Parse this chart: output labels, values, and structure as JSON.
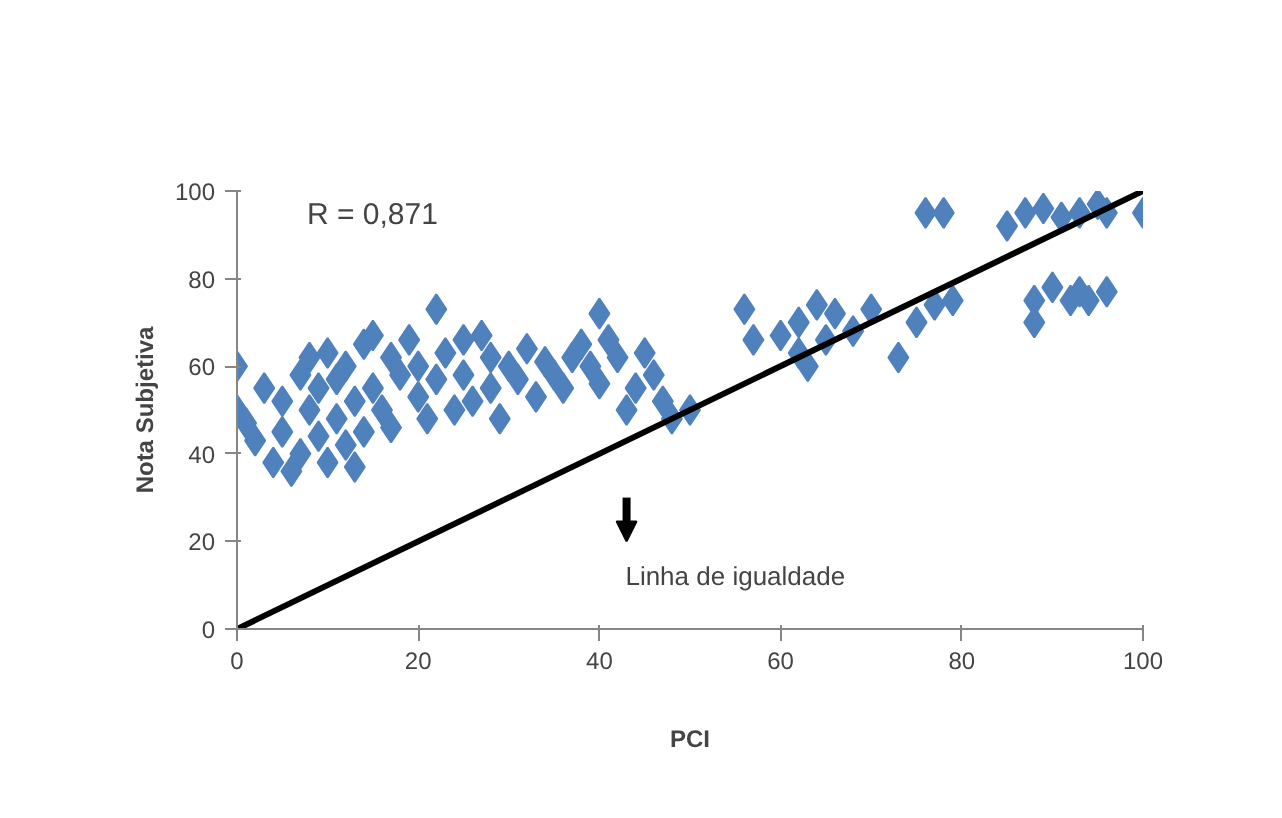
{
  "chart_data": {
    "type": "scatter",
    "xlabel": "PCI",
    "ylabel": "Nota Subjetiva",
    "xlim": [
      0,
      100
    ],
    "ylim": [
      0,
      100
    ],
    "xticks": [
      0,
      20,
      40,
      60,
      80,
      100
    ],
    "yticks": [
      0,
      20,
      40,
      60,
      80,
      100
    ],
    "grid": false,
    "marker": "diamond",
    "annotations": [
      "R = 0,871",
      "Linha de igualdade"
    ],
    "series": [
      {
        "color": "#4f81bd",
        "x": [
          0,
          0,
          1,
          2,
          3,
          4,
          5,
          5,
          6,
          7,
          7,
          8,
          8,
          9,
          9,
          10,
          10,
          11,
          11,
          12,
          12,
          13,
          13,
          14,
          14,
          15,
          15,
          16,
          17,
          17,
          18,
          19,
          20,
          20,
          21,
          22,
          22,
          23,
          24,
          25,
          25,
          26,
          27,
          28,
          28,
          29,
          30,
          31,
          32,
          33,
          34,
          35,
          36,
          37,
          38,
          39,
          40,
          40,
          41,
          42,
          43,
          44,
          45,
          46,
          47,
          48,
          50,
          56,
          57,
          60,
          62,
          62,
          63,
          64,
          65,
          66,
          68,
          70,
          73,
          75,
          76,
          77,
          78,
          79,
          85,
          87,
          88,
          88,
          89,
          90,
          91,
          92,
          93,
          93,
          94,
          95,
          96,
          96,
          100
        ],
        "values": [
          60,
          50,
          47,
          43,
          55,
          38,
          52,
          45,
          36,
          58,
          40,
          62,
          50,
          55,
          44,
          63,
          38,
          48,
          57,
          42,
          60,
          37,
          52,
          65,
          45,
          67,
          55,
          50,
          62,
          46,
          58,
          66,
          53,
          60,
          48,
          73,
          57,
          63,
          50,
          66,
          58,
          52,
          67,
          55,
          62,
          48,
          60,
          57,
          64,
          53,
          61,
          58,
          55,
          62,
          65,
          60,
          72,
          56,
          66,
          62,
          50,
          55,
          63,
          58,
          52,
          48,
          50,
          73,
          66,
          67,
          63,
          70,
          60,
          74,
          66,
          72,
          68,
          73,
          62,
          70,
          95,
          74,
          95,
          75,
          92,
          95,
          75,
          70,
          96,
          78,
          94,
          75,
          95,
          77,
          75,
          97,
          77,
          95,
          95
        ]
      },
      {
        "type": "line",
        "marker": "none",
        "color": "#000000",
        "x": [
          0,
          100
        ],
        "values": [
          0,
          100
        ]
      }
    ]
  }
}
